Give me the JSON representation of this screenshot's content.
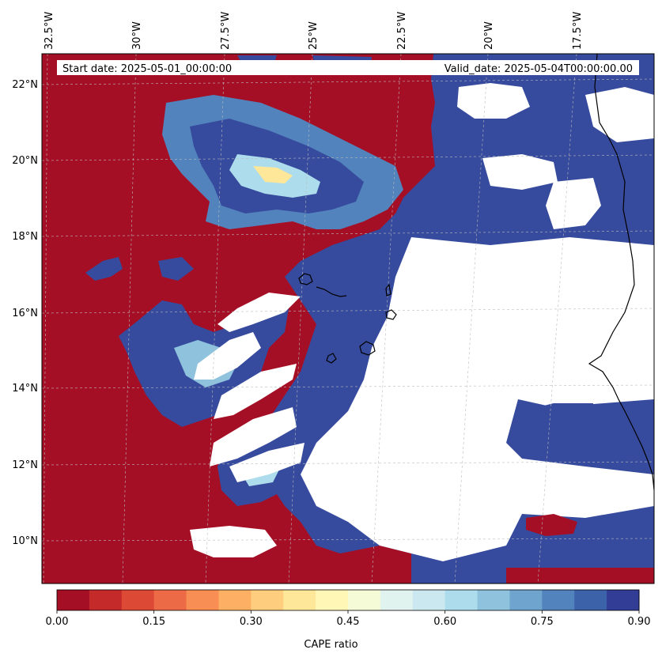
{
  "info": {
    "start_date": "Start date: 2025-05-01_00:00:00",
    "valid_date": "Valid_date: 2025-05-04T00:00:00.00"
  },
  "axes": {
    "lon_labels": [
      "32.5°W",
      "30°W",
      "27.5°W",
      "25°W",
      "22.5°W",
      "20°W",
      "17.5°W"
    ],
    "lat_labels": [
      "22°N",
      "20°N",
      "18°N",
      "16°N",
      "14°N",
      "12°N",
      "10°N"
    ]
  },
  "colorbar": {
    "title": "CAPE ratio",
    "tick_labels": [
      "0.00",
      "0.15",
      "0.30",
      "0.45",
      "0.60",
      "0.75",
      "0.90"
    ],
    "colors": [
      "#a50f26",
      "#c52a2b",
      "#dc4a36",
      "#ec6a45",
      "#f88e53",
      "#fdb064",
      "#fece7e",
      "#fee799",
      "#fff7b6",
      "#f5fbd7",
      "#e1f3ee",
      "#cbe8f1",
      "#addcec",
      "#8ec2dd",
      "#6fa4ce",
      "#5283bd",
      "#3c62aa",
      "#323d96"
    ]
  },
  "map_colors": {
    "red": "#a50f26",
    "blue": "#364b9d",
    "nodata": "#ffffff",
    "coast": "#000000"
  }
}
